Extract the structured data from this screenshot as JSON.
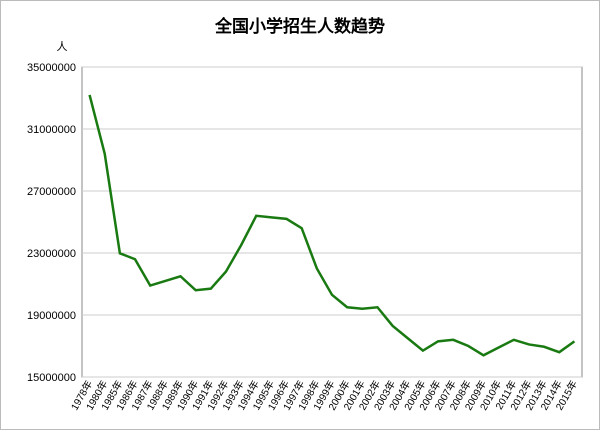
{
  "chart_data": {
    "type": "line",
    "title": "全国小学招生人数趋势",
    "y_label": "人",
    "categories": [
      "1978年",
      "1980年",
      "1985年",
      "1986年",
      "1987年",
      "1988年",
      "1989年",
      "1990年",
      "1991年",
      "1992年",
      "1993年",
      "1994年",
      "1995年",
      "1996年",
      "1997年",
      "1998年",
      "1999年",
      "2000年",
      "2001年",
      "2002年",
      "2003年",
      "2004年",
      "2005年",
      "2006年",
      "2007年",
      "2008年",
      "2009年",
      "2010年",
      "2011年",
      "2012年",
      "2013年",
      "2014年",
      "2015年"
    ],
    "series": [
      {
        "name": "小学招生人数",
        "color": "#1a7a12",
        "values": [
          33200000,
          29400000,
          22980000,
          22600000,
          20900000,
          21200000,
          21500000,
          20600000,
          20700000,
          21800000,
          23500000,
          25400000,
          25300000,
          25200000,
          24600000,
          22000000,
          20300000,
          19500000,
          19400000,
          19500000,
          18300000,
          17500000,
          16700000,
          17300000,
          17400000,
          17000000,
          16400000,
          16900000,
          17400000,
          17100000,
          16950000,
          16600000,
          17300000
        ]
      }
    ],
    "ylim": [
      15000000,
      35000000
    ],
    "yticks": [
      15000000,
      19000000,
      23000000,
      27000000,
      31000000,
      35000000
    ],
    "grid": true
  }
}
